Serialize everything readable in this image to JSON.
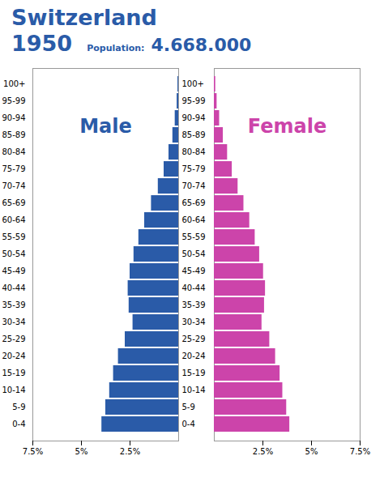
{
  "chart_data": [
    {
      "type": "bar",
      "orientation": "horizontal",
      "title": "Switzerland",
      "subtitle": "1950",
      "annotations": [
        "Population:",
        "4.668.000"
      ],
      "categories": [
        "100+",
        "95-99",
        "90-94",
        "85-89",
        "80-84",
        "75-79",
        "70-74",
        "65-69",
        "60-64",
        "55-59",
        "50-54",
        "45-49",
        "40-44",
        "35-39",
        "30-34",
        "25-29",
        "20-24",
        "15-19",
        "10-14",
        "5-9",
        "0-4"
      ],
      "series": [
        {
          "name": "Male",
          "color": "#2a5ba8",
          "values": [
            0.04,
            0.08,
            0.18,
            0.3,
            0.5,
            0.75,
            1.05,
            1.4,
            1.75,
            2.05,
            2.3,
            2.5,
            2.6,
            2.55,
            2.35,
            2.75,
            3.1,
            3.35,
            3.55,
            3.75,
            3.95
          ]
        }
      ],
      "xlim": [
        7.5,
        0
      ],
      "xticks": [
        {
          "value": 7.5,
          "label": "7.5%"
        },
        {
          "value": 5,
          "label": "5%"
        },
        {
          "value": 2.5,
          "label": "2.5%"
        }
      ]
    },
    {
      "type": "bar",
      "orientation": "horizontal",
      "categories": [
        "100+",
        "95-99",
        "90-94",
        "85-89",
        "80-84",
        "75-79",
        "70-74",
        "65-69",
        "60-64",
        "55-59",
        "50-54",
        "45-49",
        "40-44",
        "35-39",
        "30-34",
        "25-29",
        "20-24",
        "15-19",
        "10-14",
        "5-9",
        "0-4"
      ],
      "series": [
        {
          "name": "Female",
          "color": "#cc44aa",
          "values": [
            0.07,
            0.14,
            0.27,
            0.46,
            0.68,
            0.92,
            1.22,
            1.52,
            1.82,
            2.1,
            2.33,
            2.53,
            2.63,
            2.58,
            2.45,
            2.85,
            3.15,
            3.38,
            3.52,
            3.72,
            3.88
          ]
        }
      ],
      "xlim": [
        0,
        7.5
      ],
      "xticks": [
        {
          "value": 2.5,
          "label": "2.5%"
        },
        {
          "value": 5,
          "label": "5%"
        },
        {
          "value": 7.5,
          "label": "7.5%"
        }
      ],
      "tick_labels": "x"
    }
  ]
}
